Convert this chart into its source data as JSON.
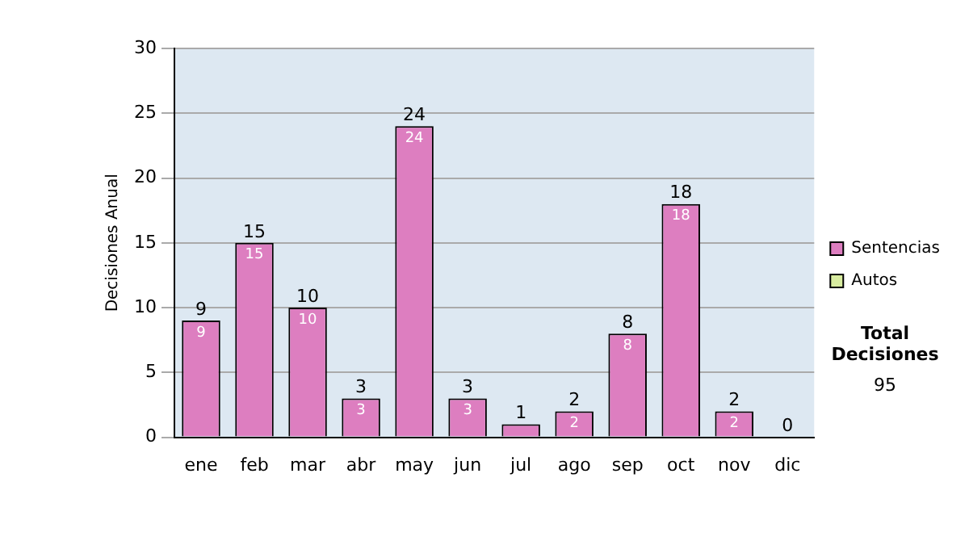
{
  "chart_data": {
    "type": "bar",
    "ylabel": "Decisiones Anual",
    "categories": [
      "ene",
      "feb",
      "mar",
      "abr",
      "may",
      "jun",
      "jul",
      "ago",
      "sep",
      "oct",
      "nov",
      "dic"
    ],
    "series": [
      {
        "name": "Sentencias",
        "color": "#dd7ec0",
        "values": [
          9,
          15,
          10,
          3,
          24,
          3,
          1,
          2,
          8,
          18,
          2,
          0
        ],
        "value_labels": [
          "9",
          "15",
          "10",
          "3",
          "24",
          "3",
          null,
          "2",
          "8",
          "18",
          "2",
          null
        ]
      },
      {
        "name": "Autos",
        "color": "#d8eca0",
        "values": [
          0,
          0,
          0,
          0,
          0,
          0,
          0,
          0,
          0,
          0,
          0,
          0
        ]
      }
    ],
    "stacked": true,
    "totals": [
      "9",
      "15",
      "10",
      "3",
      "24",
      "3",
      "1",
      "2",
      "8",
      "18",
      "2",
      "0"
    ],
    "ylim": [
      0,
      30
    ],
    "yticks": [
      0,
      5,
      10,
      15,
      20,
      25,
      30
    ],
    "grid": "y",
    "legend": "right",
    "annotations": [
      "Total Decisiones",
      "95"
    ]
  }
}
